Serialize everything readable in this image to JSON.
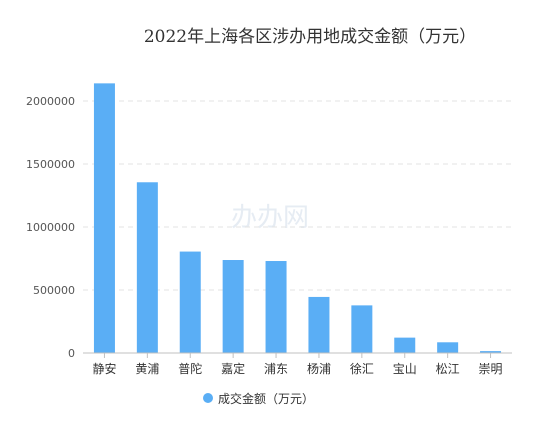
{
  "chart_data": {
    "type": "bar",
    "title": "2022年上海各区涉办用地成交金额（万元）",
    "categories": [
      "静安",
      "黄浦",
      "普陀",
      "嘉定",
      "浦东",
      "杨浦",
      "徐汇",
      "宝山",
      "松江",
      "崇明"
    ],
    "series": [
      {
        "name": "成交金额（万元）",
        "values": [
          2140000,
          1355000,
          805000,
          738000,
          730000,
          445000,
          378000,
          122000,
          85000,
          15000
        ]
      }
    ],
    "yticks": [
      "0",
      "500000",
      "1000000",
      "1500000",
      "2000000"
    ],
    "ylim": [
      0,
      2000000
    ],
    "grid": true,
    "legend": "bottom",
    "watermark": "办办网",
    "colors": {
      "bar": "#5aaef5",
      "grid": "#e3e3e3",
      "axis": "#c0c0c0"
    }
  }
}
